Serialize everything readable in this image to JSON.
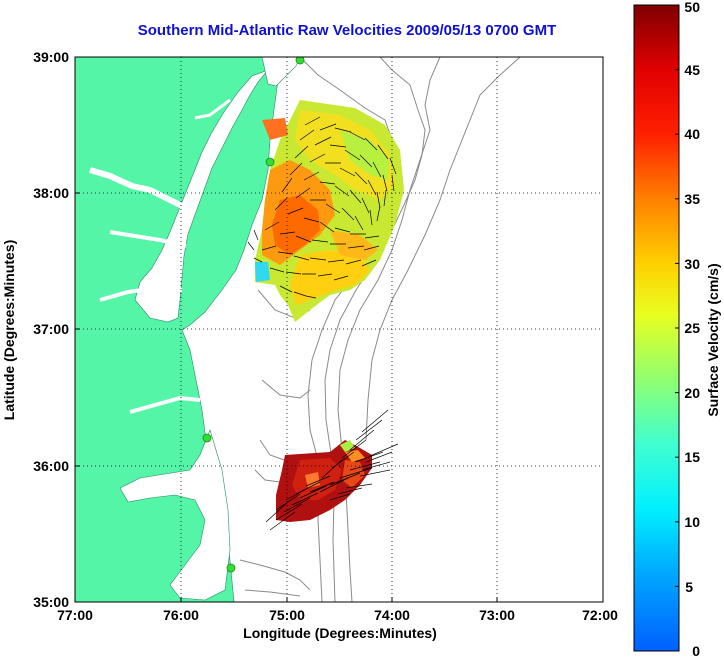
{
  "title": "Southern Mid-Atlantic Raw Velocities 2009/05/13 0700 GMT",
  "x_axis": {
    "label": "Longitude (Degrees:Minutes)",
    "ticks": [
      "77:00",
      "76:00",
      "75:00",
      "74:00",
      "73:00",
      "72:00"
    ],
    "range_deg_west": [
      77,
      72
    ]
  },
  "y_axis": {
    "label": "Latitude (Degrees:Minutes)",
    "ticks": [
      "35:00",
      "36:00",
      "37:00",
      "38:00",
      "39:00"
    ],
    "range_deg_north": [
      35,
      39
    ]
  },
  "colorbar": {
    "label": "Surface Velocity (cm/s)",
    "ticks": [
      "0",
      "5",
      "10",
      "15",
      "20",
      "25",
      "30",
      "35",
      "40",
      "45",
      "50"
    ],
    "range": [
      0,
      50
    ],
    "colormap": "jet"
  },
  "colors": {
    "land": "#55f5a8",
    "title": "#1010d0",
    "bathymetry": "#8a8a8a",
    "station": "#33dd33"
  },
  "features": [
    "land",
    "bathymetry-contours",
    "hf-radar-stations",
    "velocity-vectors",
    "speed-grid"
  ]
}
